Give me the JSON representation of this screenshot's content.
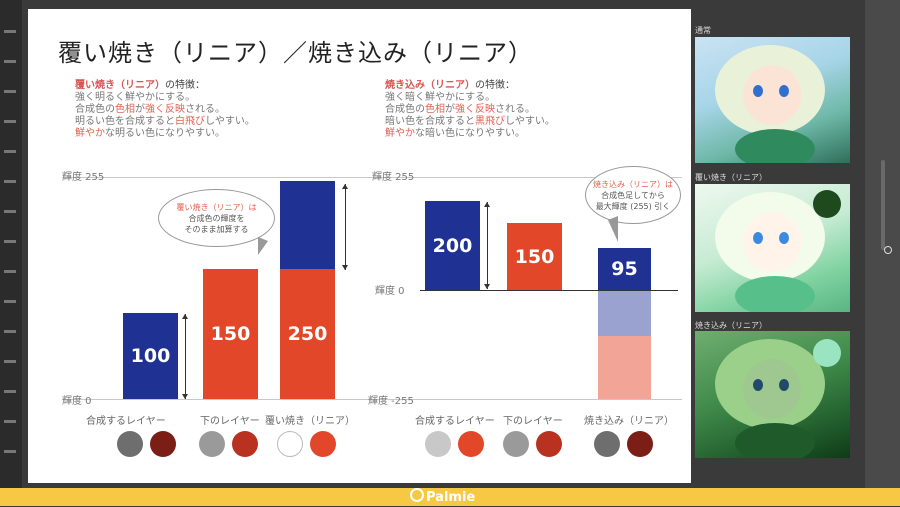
{
  "slide": {
    "title": "覆い焼き（リニア）／焼き込み（リニア）",
    "left_desc": {
      "heading": "覆い焼き（リニア）",
      "heading_suffix": "の特徴：",
      "line1": "強く明るく鮮やかにする。",
      "line2_a": "合成色の",
      "line2_hl1": "色相",
      "line2_b": "が",
      "line2_hl2": "強く反映",
      "line2_c": "される。",
      "line3_a": "明るい色を合成すると",
      "line3_hl": "白飛び",
      "line3_b": "しやすい。",
      "line4_hl": "鮮やか",
      "line4_b": "な明るい色になりやすい。"
    },
    "right_desc": {
      "heading": "焼き込み（リニア）",
      "heading_suffix": "の特徴：",
      "line1": "強く暗く鮮やかにする。",
      "line2_a": "合成色の",
      "line2_hl1": "色相",
      "line2_b": "が",
      "line2_hl2": "強く反映",
      "line2_c": "される。",
      "line3_a": "暗い色を合成すると",
      "line3_hl": "黒飛び",
      "line3_b": "しやすい。",
      "line4_hl": "鮮やか",
      "line4_b": "な暗い色になりやすい。"
    },
    "left_chart": {
      "top_label": "輝度 255",
      "bottom_label": "輝度 0",
      "bars": [
        {
          "label": "100",
          "value": 100
        },
        {
          "label": "150",
          "value": 150
        },
        {
          "label": "250",
          "value": 250,
          "overflow": 105
        }
      ],
      "bubble_title": "覆い焼き（リニア）は",
      "bubble_line2": "合成色の輝度を",
      "bubble_line3": "そのまま加算する",
      "layer_labels": [
        "合成するレイヤー",
        "下のレイヤー",
        "覆い焼き（リニア）"
      ]
    },
    "right_chart": {
      "top_label": "輝度 255",
      "mid_label": "輝度 0",
      "bottom_label": "輝度 -255",
      "bars": [
        {
          "label": "200",
          "value": 200
        },
        {
          "label": "150",
          "value": 150
        },
        {
          "label": "95",
          "value": 95,
          "negative": -255
        }
      ],
      "bubble_title": "焼き込み（リニア）は",
      "bubble_line2": "合成色足してから",
      "bubble_line3": "最大輝度 (255) 引く",
      "layer_labels": [
        "合成するレイヤー",
        "下のレイヤー",
        "焼き込み（リニア）"
      ]
    },
    "swatches": {
      "left": [
        "#6e6e6e",
        "#7a1e16",
        "#9a9a9a",
        "#b8321f",
        "#ffffff",
        "#e2472a"
      ],
      "right": [
        "#c8c8c8",
        "#e2472a",
        "#9a9a9a",
        "#b8321f",
        "#6e6e6e",
        "#7a1e16"
      ]
    }
  },
  "thumbnails": {
    "normal_label": "通常",
    "dodge_label": "覆い焼き（リニア）",
    "burn_label": "焼き込み（リニア）"
  },
  "footer": {
    "logo_text": "Palmie"
  },
  "colors": {
    "accent_blue": "#1f3193",
    "accent_red": "#e2472a",
    "footer_yellow": "#f7c843"
  }
}
